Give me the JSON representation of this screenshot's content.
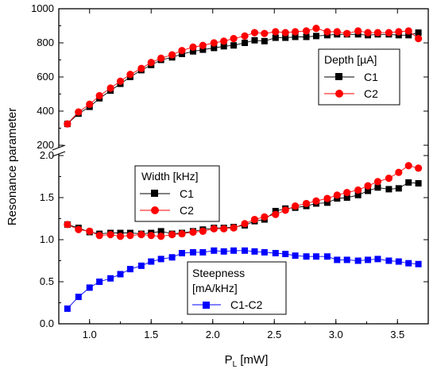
{
  "chart_data": {
    "type": "scatter",
    "xlabel": "P_L [mW]",
    "xlabel_main": "P",
    "xlabel_sub": "L",
    "xlabel_unit": " [mW]",
    "ylabel": "Resonance parameter",
    "xlim": [
      0.75,
      3.75
    ],
    "x_ticks": [
      "1.0",
      "1.5",
      "2.0",
      "2.5",
      "3.0",
      "3.5"
    ],
    "x_tick_values": [
      1.0,
      1.5,
      2.0,
      2.5,
      3.0,
      3.5
    ],
    "top_panel": {
      "ylim": [
        200,
        1000
      ],
      "y_ticks": [
        "200",
        "400",
        "600",
        "800",
        "1000"
      ],
      "y_tick_values": [
        200,
        400,
        600,
        800,
        1000
      ],
      "legend": {
        "title": "Depth [µA]",
        "position": "right",
        "entries": [
          "C1",
          "C2"
        ]
      },
      "series": [
        {
          "name": "C1",
          "color": "#000000",
          "marker": "square",
          "x": [
            0.82,
            0.91,
            1.0,
            1.08,
            1.17,
            1.25,
            1.33,
            1.42,
            1.5,
            1.58,
            1.67,
            1.75,
            1.84,
            1.92,
            2.01,
            2.09,
            2.17,
            2.26,
            2.34,
            2.42,
            2.51,
            2.59,
            2.67,
            2.76,
            2.84,
            2.93,
            3.01,
            3.09,
            3.18,
            3.26,
            3.34,
            3.43,
            3.51,
            3.59,
            3.67
          ],
          "values": [
            325,
            385,
            425,
            475,
            520,
            560,
            600,
            640,
            670,
            700,
            715,
            735,
            750,
            760,
            770,
            780,
            785,
            800,
            815,
            810,
            830,
            830,
            835,
            835,
            840,
            845,
            850,
            850,
            850,
            845,
            850,
            850,
            845,
            845,
            860
          ]
        },
        {
          "name": "C2",
          "color": "#ff0000",
          "marker": "circle",
          "x": [
            0.82,
            0.91,
            1.0,
            1.08,
            1.17,
            1.25,
            1.33,
            1.42,
            1.5,
            1.58,
            1.67,
            1.75,
            1.84,
            1.92,
            2.01,
            2.09,
            2.17,
            2.26,
            2.34,
            2.42,
            2.51,
            2.59,
            2.67,
            2.76,
            2.84,
            2.93,
            3.01,
            3.09,
            3.18,
            3.26,
            3.34,
            3.43,
            3.51,
            3.59,
            3.67
          ],
          "values": [
            325,
            395,
            440,
            490,
            535,
            575,
            615,
            650,
            685,
            710,
            730,
            755,
            775,
            785,
            800,
            810,
            825,
            840,
            860,
            855,
            865,
            860,
            865,
            870,
            885,
            865,
            865,
            855,
            870,
            860,
            860,
            860,
            865,
            870,
            825
          ]
        }
      ]
    },
    "bottom_panel": {
      "ylim": [
        0.0,
        2.0
      ],
      "y_ticks": [
        "0.0",
        "0.5",
        "1.0",
        "1.5",
        "2.0"
      ],
      "y_tick_values": [
        0.0,
        0.5,
        1.0,
        1.5,
        2.0
      ],
      "legends": [
        {
          "title": "Width [kHz]",
          "position": "upper-left",
          "entries": [
            "C1",
            "C2"
          ]
        },
        {
          "title": "Steepness",
          "title_line2": "[mA/kHz]",
          "position": "lower-center",
          "entries": [
            "C1-C2"
          ]
        }
      ],
      "series": [
        {
          "name": "C1",
          "color": "#000000",
          "marker": "square",
          "x": [
            0.82,
            0.91,
            1.0,
            1.08,
            1.17,
            1.25,
            1.33,
            1.42,
            1.5,
            1.58,
            1.67,
            1.75,
            1.84,
            1.92,
            2.01,
            2.09,
            2.17,
            2.26,
            2.34,
            2.42,
            2.51,
            2.59,
            2.67,
            2.76,
            2.84,
            2.93,
            3.01,
            3.09,
            3.18,
            3.26,
            3.34,
            3.43,
            3.51,
            3.59,
            3.67
          ],
          "values": [
            1.18,
            1.14,
            1.09,
            1.07,
            1.08,
            1.08,
            1.08,
            1.07,
            1.08,
            1.1,
            1.07,
            1.08,
            1.1,
            1.12,
            1.14,
            1.14,
            1.15,
            1.17,
            1.22,
            1.24,
            1.34,
            1.37,
            1.38,
            1.4,
            1.43,
            1.44,
            1.49,
            1.5,
            1.53,
            1.58,
            1.62,
            1.6,
            1.61,
            1.68,
            1.67
          ]
        },
        {
          "name": "C2",
          "color": "#ff0000",
          "marker": "circle",
          "x": [
            0.82,
            0.91,
            1.0,
            1.08,
            1.17,
            1.25,
            1.33,
            1.42,
            1.5,
            1.58,
            1.67,
            1.75,
            1.84,
            1.92,
            2.01,
            2.09,
            2.17,
            2.26,
            2.34,
            2.42,
            2.51,
            2.59,
            2.67,
            2.76,
            2.84,
            2.93,
            3.01,
            3.09,
            3.18,
            3.26,
            3.34,
            3.43,
            3.51,
            3.59,
            3.67
          ],
          "values": [
            1.18,
            1.12,
            1.1,
            1.05,
            1.06,
            1.04,
            1.05,
            1.06,
            1.05,
            1.04,
            1.06,
            1.07,
            1.09,
            1.1,
            1.13,
            1.13,
            1.14,
            1.19,
            1.24,
            1.27,
            1.3,
            1.35,
            1.4,
            1.43,
            1.46,
            1.49,
            1.53,
            1.56,
            1.59,
            1.64,
            1.69,
            1.73,
            1.8,
            1.88,
            1.85
          ]
        },
        {
          "name": "C1-C2",
          "color": "#0000ff",
          "marker": "square",
          "x": [
            0.82,
            0.91,
            1.0,
            1.08,
            1.17,
            1.25,
            1.33,
            1.42,
            1.5,
            1.58,
            1.67,
            1.75,
            1.84,
            1.92,
            2.01,
            2.09,
            2.17,
            2.26,
            2.34,
            2.42,
            2.51,
            2.59,
            2.67,
            2.76,
            2.84,
            2.93,
            3.01,
            3.09,
            3.18,
            3.26,
            3.34,
            3.43,
            3.51,
            3.59,
            3.67
          ],
          "values": [
            0.18,
            0.32,
            0.43,
            0.5,
            0.54,
            0.59,
            0.65,
            0.69,
            0.74,
            0.77,
            0.79,
            0.84,
            0.85,
            0.85,
            0.87,
            0.86,
            0.87,
            0.87,
            0.86,
            0.85,
            0.84,
            0.83,
            0.81,
            0.8,
            0.8,
            0.8,
            0.76,
            0.76,
            0.75,
            0.76,
            0.77,
            0.75,
            0.74,
            0.72,
            0.71
          ]
        }
      ]
    }
  }
}
